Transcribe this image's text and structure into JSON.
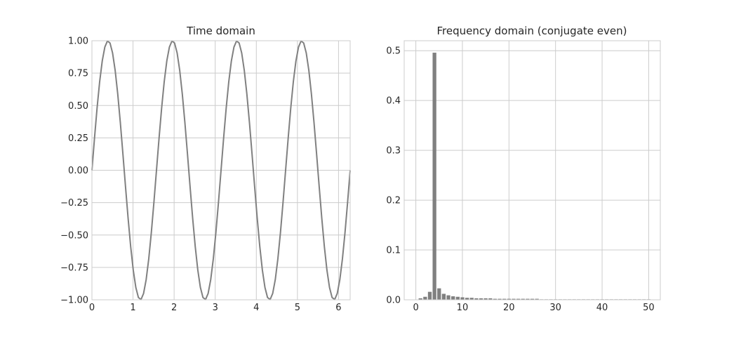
{
  "figure": {
    "background": "#ffffff",
    "grid_color": "#cccccc",
    "line_color": "#808080",
    "bar_color": "#808080"
  },
  "chart_data": [
    {
      "type": "line",
      "title": "Time domain",
      "xlabel": "",
      "ylabel": "",
      "xlim": [
        0,
        6.283
      ],
      "ylim": [
        -1.0,
        1.0
      ],
      "xticks": [
        0,
        1,
        2,
        3,
        4,
        5,
        6
      ],
      "xtick_labels": [
        "0",
        "1",
        "2",
        "3",
        "4",
        "5",
        "6"
      ],
      "yticks": [
        -1.0,
        -0.75,
        -0.5,
        -0.25,
        0.0,
        0.25,
        0.5,
        0.75,
        1.0
      ],
      "ytick_labels": [
        "−1.00",
        "−0.75",
        "−0.50",
        "−0.25",
        "0.00",
        "0.25",
        "0.50",
        "0.75",
        "1.00"
      ],
      "grid": true,
      "series": [
        {
          "function": "sin(4x)",
          "frequency": 4,
          "amplitude": 1.0,
          "samples": 101,
          "x_range": [
            0,
            6.283
          ]
        }
      ]
    },
    {
      "type": "bar",
      "title": "Frequency domain (conjugate even)",
      "xlabel": "",
      "ylabel": "",
      "xlim": [
        -2.5,
        52.5
      ],
      "ylim": [
        0,
        0.52
      ],
      "xticks": [
        0,
        10,
        20,
        30,
        40,
        50
      ],
      "xtick_labels": [
        "0",
        "10",
        "20",
        "30",
        "40",
        "50"
      ],
      "yticks": [
        0.0,
        0.1,
        0.2,
        0.3,
        0.4,
        0.5
      ],
      "ytick_labels": [
        "0.0",
        "0.1",
        "0.2",
        "0.3",
        "0.4",
        "0.5"
      ],
      "grid": true,
      "categories": [
        0,
        1,
        2,
        3,
        4,
        5,
        6,
        7,
        8,
        9,
        10,
        11,
        12,
        13,
        14,
        15,
        16,
        17,
        18,
        19,
        20,
        21,
        22,
        23,
        24,
        25,
        26,
        27,
        28,
        29,
        30,
        31,
        32,
        33,
        34,
        35,
        36,
        37,
        38,
        39,
        40,
        41,
        42,
        43,
        44,
        45,
        46,
        47,
        48,
        49,
        50
      ],
      "values": [
        0.0,
        0.003,
        0.006,
        0.016,
        0.496,
        0.023,
        0.012,
        0.009,
        0.007,
        0.006,
        0.005,
        0.004,
        0.004,
        0.003,
        0.003,
        0.003,
        0.003,
        0.002,
        0.002,
        0.002,
        0.002,
        0.002,
        0.002,
        0.002,
        0.002,
        0.002,
        0.002,
        0.001,
        0.001,
        0.001,
        0.001,
        0.001,
        0.001,
        0.001,
        0.001,
        0.001,
        0.001,
        0.001,
        0.001,
        0.001,
        0.001,
        0.001,
        0.001,
        0.001,
        0.001,
        0.001,
        0.001,
        0.001,
        0.001,
        0.001,
        0.001
      ]
    }
  ]
}
